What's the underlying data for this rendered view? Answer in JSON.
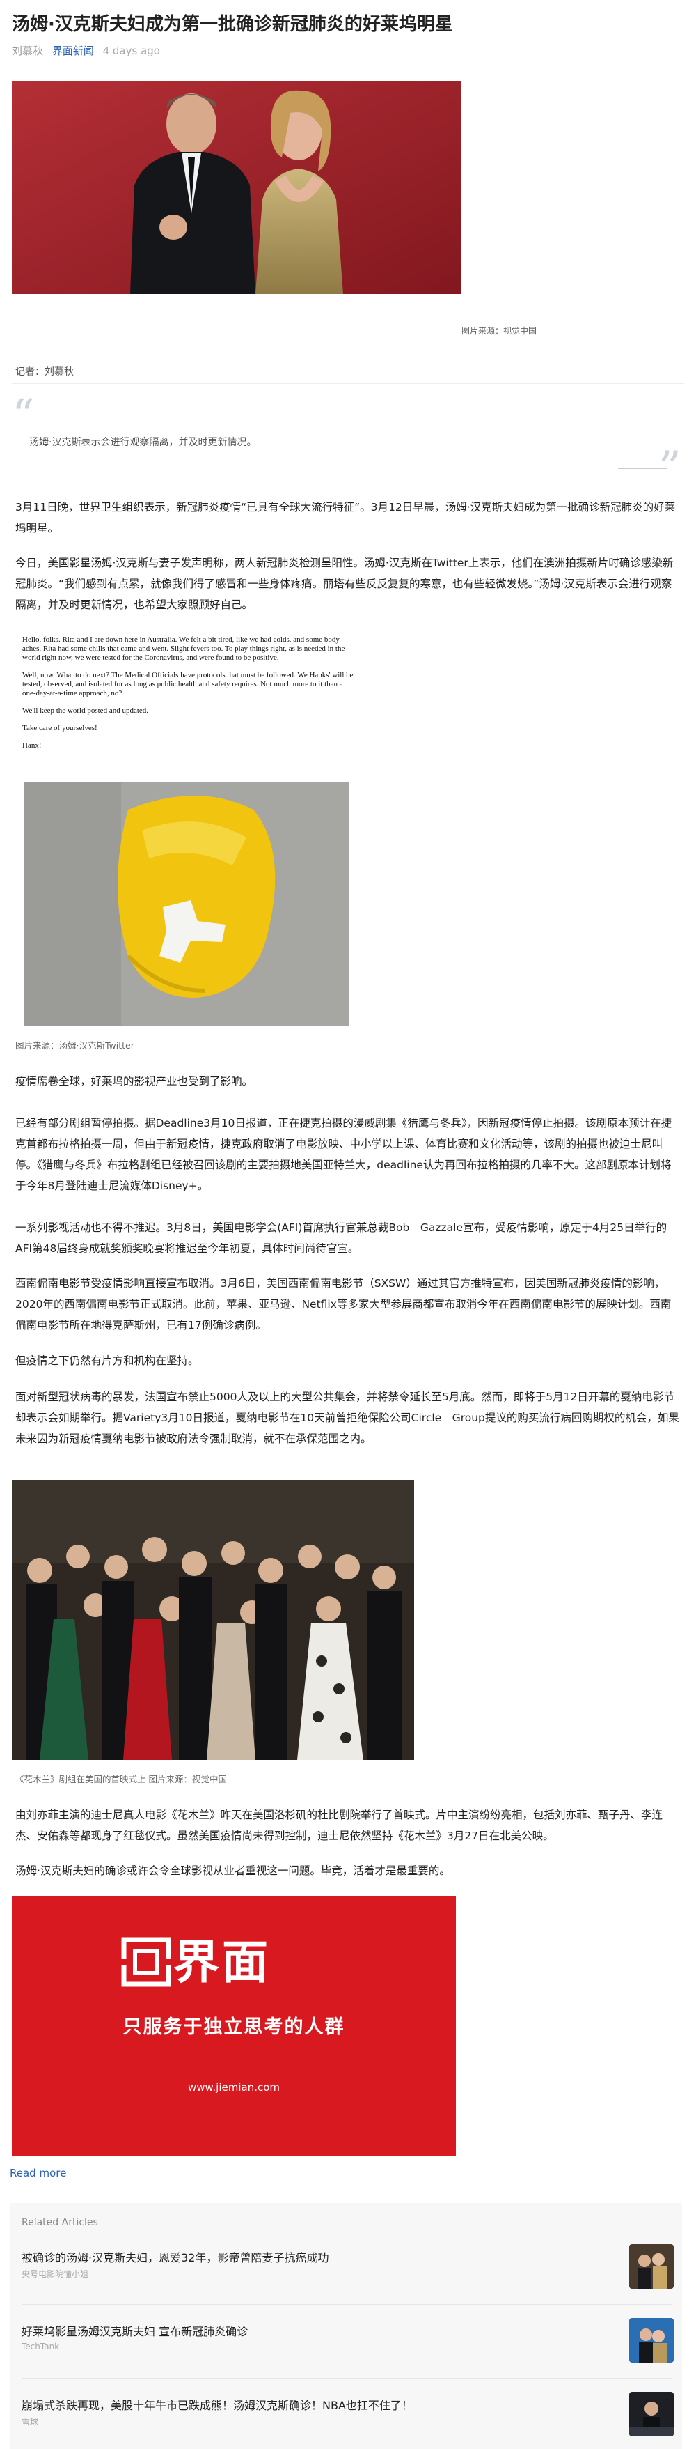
{
  "article": {
    "title": "汤姆·汉克斯夫妇成为第一批确诊新冠肺炎的好莱坞明星",
    "author": "刘慕秋",
    "source": "界面新闻",
    "time": "4 days ago",
    "hero_caption": "图片来源：视觉中国",
    "reporter": "记者：刘慕秋",
    "quote_open": "“",
    "quote_close": "”",
    "summary": "汤姆·汉克斯表示会进行观察隔离，并及时更新情况。",
    "paragraphs": [
      "3月11日晚，世界卫生组织表示，新冠肺炎疫情“已具有全球大流行特征”。3月12日早晨，汤姆·汉克斯夫妇成为第一批确诊新冠肺炎的好莱坞明星。",
      "今日，美国影星汤姆·汉克斯与妻子发声明称，两人新冠肺炎检测呈阳性。汤姆·汉克斯在Twitter上表示，他们在澳洲拍摄新片时确诊感染新冠肺炎。“我们感到有点累，就像我们得了感冒和一些身体疼痛。丽塔有些反反复复的寒意，也有些轻微发烧。”汤姆·汉克斯表示会进行观察隔离，并及时更新情况，也希望大家照顾好自己。"
    ],
    "tweet": {
      "lines": [
        "Hello, folks. Rita and I are down here in Australia. We felt a bit tired, like we had colds, and some body aches. Rita had some chills that came and went. Slight fevers too. To play things right, as is needed in the world right now, we were tested for the Coronavirus, and were found to be positive.",
        "Well, now. What to do next? The Medical Officials have protocols that must be followed. We Hanks' will be tested, observed, and isolated for as long as public health and safety requires. Not much more to it than a one-day-at-a-time approach, no?",
        "We'll keep the world posted and updated.",
        "Take care of yourselves!",
        "Hanx!"
      ],
      "caption": "图片来源：汤姆·汉克斯Twitter"
    },
    "paragraphs_2": [
      "疫情席卷全球，好莱坞的影视产业也受到了影响。",
      "已经有部分剧组暂停拍摄。据Deadline3月10日报道，正在捷克拍摄的漫威剧集《猎鹰与冬兵》，因新冠疫情停止拍摄。该剧原本预计在捷克首都布拉格拍摄一周，但由于新冠疫情，捷克政府取消了电影放映、中小学以上课、体育比赛和文化活动等，该剧的拍摄也被迫士尼叫停。《猎鹰与冬兵》布拉格剧组已经被召回该剧的主要拍摄地美国亚特兰大，deadline认为再回布拉格拍摄的几率不大。这部剧原本计划将于今年8月登陆迪士尼流媒体Disney+。",
      "一系列影视活动也不得不推迟。3月8日，美国电影学会(AFI)首席执行官兼总裁Bob　Gazzale宣布，受疫情影响，原定于4月25日举行的AFI第48届终身成就奖颁奖晚宴将推迟至今年初夏，具体时间尚待官宣。",
      "西南偏南电影节受疫情影响直接宣布取消。3月6日，美国西南偏南电影节（SXSW）通过其官方推特宣布，因美国新冠肺炎疫情的影响，2020年的西南偏南电影节正式取消。此前，苹果、亚马逊、Netflix等多家大型参展商都宣布取消今年在西南偏南电影节的展映计划。西南偏南电影节所在地得克萨斯州，已有17例确诊病例。",
      "但疫情之下仍然有片方和机构在坚持。",
      "面对新型冠状病毒的暴发，法国宣布禁止5000人及以上的大型公共集会，并将禁令延长至5月底。然而，即将于5月12日开幕的戛纳电影节却表示会如期举行。据Variety3月10日报道，戛纳电影节在10天前曾拒绝保险公司Circle　Group提议的购买流行病回购期权的机会，如果未来因为新冠疫情戛纳电影节被政府法令强制取消，就不在承保范围之内。"
    ],
    "photo2_caption": "《花木兰》剧组在美国的首映式上 图片来源：视觉中国",
    "paragraphs_3": [
      "由刘亦菲主演的迪士尼真人电影《花木兰》昨天在美国洛杉矶的杜比剧院举行了首映式。片中主演纷纷亮相，包括刘亦菲、甄子丹、李连杰、安佑森等都现身了红毯仪式。虽然美国疫情尚未得到控制，迪士尼依然坚持《花木兰》3月27日在北美公映。",
      "汤姆·汉克斯夫妇的确诊或许会令全球影视从业者重视这一问题。毕竟，活着才是最重要的。"
    ]
  },
  "ad": {
    "brand_cn": "界面",
    "slogan": "只服务于独立思考的人群",
    "url": "www.jiemian.com"
  },
  "read_more": "Read more",
  "related": {
    "heading": "Related Articles",
    "items": [
      {
        "title": "被确诊的汤姆·汉克斯夫妇，恩爱32年，影帝曾陪妻子抗癌成功",
        "source": "央号电影院懂小姐"
      },
      {
        "title": "好莱坞影星汤姆汉克斯夫妇 宣布新冠肺炎确诊",
        "source": "TechTank"
      },
      {
        "title": "崩塌式杀跌再现，美股十年牛市已跌成熊！汤姆汉克斯确诊！NBA也扛不住了！",
        "source": "雪球"
      }
    ]
  },
  "colors": {
    "link": "#2a62b8",
    "ad_red": "#d8191f"
  }
}
